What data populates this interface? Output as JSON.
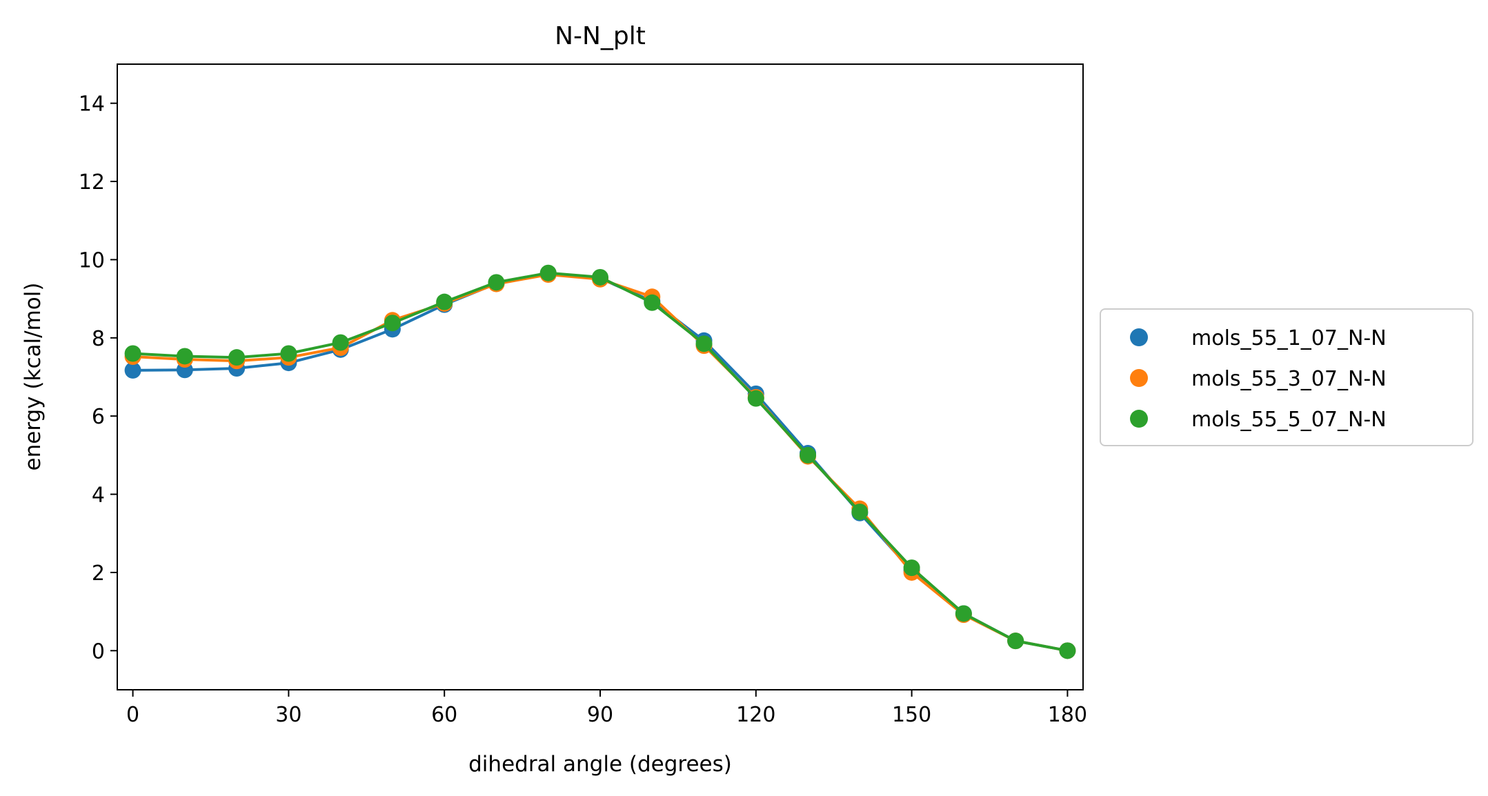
{
  "chart_data": {
    "type": "line",
    "title": "N-N_plt",
    "xlabel": "dihedral angle (degrees)",
    "ylabel": "energy (kcal/mol)",
    "xlim": [
      -3,
      183
    ],
    "ylim": [
      -1,
      15
    ],
    "xticks": [
      0,
      30,
      60,
      90,
      120,
      150,
      180
    ],
    "yticks": [
      0,
      2,
      4,
      6,
      8,
      10,
      12,
      14
    ],
    "grid": false,
    "legend_position": "center-right outside",
    "x": [
      0,
      10,
      20,
      30,
      40,
      50,
      60,
      70,
      80,
      90,
      100,
      110,
      120,
      130,
      140,
      150,
      160,
      170,
      180
    ],
    "series": [
      {
        "name": "mols_55_1_07_N-N",
        "color": "#1f77b4",
        "values": [
          7.17,
          7.18,
          7.22,
          7.36,
          7.7,
          8.22,
          8.85,
          9.39,
          9.65,
          9.52,
          8.94,
          7.93,
          6.57,
          5.05,
          3.52,
          2.05,
          0.95,
          0.25,
          0.0
        ]
      },
      {
        "name": "mols_55_3_07_N-N",
        "color": "#ff7f0e",
        "values": [
          7.52,
          7.45,
          7.41,
          7.5,
          7.75,
          8.45,
          8.88,
          9.38,
          9.62,
          9.5,
          9.05,
          7.8,
          6.48,
          4.97,
          3.63,
          2.0,
          0.92,
          0.25,
          0.0
        ]
      },
      {
        "name": "mols_55_5_07_N-N",
        "color": "#2ca02c",
        "values": [
          7.6,
          7.53,
          7.5,
          7.6,
          7.88,
          8.38,
          8.92,
          9.42,
          9.66,
          9.55,
          8.9,
          7.85,
          6.45,
          5.0,
          3.55,
          2.12,
          0.95,
          0.25,
          0.0
        ]
      }
    ]
  }
}
